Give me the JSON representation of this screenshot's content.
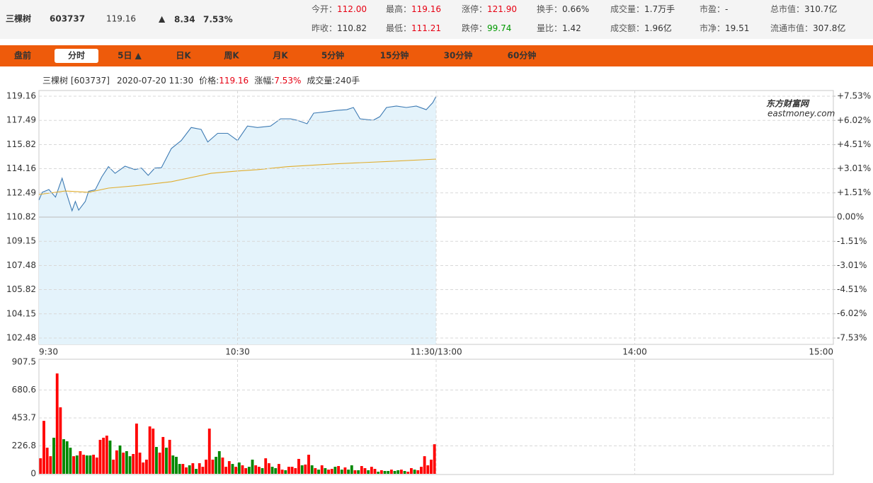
{
  "header": {
    "name": "三棵树",
    "code": "603737",
    "price": "119.16",
    "arrow": "▲",
    "change": "8.34",
    "change_pct": "7.53%",
    "color": "#e60012"
  },
  "stats": [
    [
      {
        "label": "今开：",
        "value": "112.00",
        "color": "#e60012"
      },
      {
        "label": "最高：",
        "value": "119.16",
        "color": "#e60012"
      },
      {
        "label": "涨停：",
        "value": "121.90",
        "color": "#e60012"
      },
      {
        "label": "换手：",
        "value": "0.66%",
        "color": "#333333"
      },
      {
        "label": "成交量：",
        "value": "1.7万手",
        "color": "#333333"
      },
      {
        "label": "市盈：",
        "value": "-",
        "color": "#333333"
      },
      {
        "label": "总市值：",
        "value": "310.7亿",
        "color": "#333333"
      }
    ],
    [
      {
        "label": "昨收：",
        "value": "110.82",
        "color": "#333333"
      },
      {
        "label": "最低：",
        "value": "111.21",
        "color": "#e60012"
      },
      {
        "label": "跌停：",
        "value": "99.74",
        "color": "#009900"
      },
      {
        "label": "量比：",
        "value": "1.42",
        "color": "#333333"
      },
      {
        "label": "成交额：",
        "value": "1.96亿",
        "color": "#333333"
      },
      {
        "label": "市净：",
        "value": "19.51",
        "color": "#333333"
      },
      {
        "label": "流通市值：",
        "value": "307.8亿",
        "color": "#333333"
      }
    ]
  ],
  "tabs": [
    {
      "label": "盘前"
    },
    {
      "label": "分时",
      "active": true
    },
    {
      "label": "5日 ▲"
    },
    {
      "label": "日K"
    },
    {
      "label": "周K"
    },
    {
      "label": "月K"
    },
    {
      "label": "5分钟"
    },
    {
      "label": "15分钟"
    },
    {
      "label": "30分钟"
    },
    {
      "label": "60分钟"
    }
  ],
  "info": {
    "name_code": "三棵树 [603737]",
    "datetime": "2020-07-20 11:30",
    "price_label": "价格:",
    "price": "119.16",
    "pct_label": "涨幅:",
    "pct": "7.53%",
    "volume": "成交量:240手"
  },
  "watermark": {
    "text": "东方财富网",
    "sub": "eastmoney.com"
  },
  "chart_data": [
    {
      "type": "line",
      "up_color": "#e60012",
      "down_color": "#009900",
      "grid": true,
      "xlim": [
        0,
        240
      ],
      "xticks": [
        {
          "value": 0,
          "label": "9:30"
        },
        {
          "value": 60,
          "label": "10:30"
        },
        {
          "value": 120,
          "label": "11:30/13:00"
        },
        {
          "value": 180,
          "label": "14:00"
        },
        {
          "value": 240,
          "label": "15:00"
        }
      ],
      "ylim": [
        102.48,
        119.16
      ],
      "yticks": [
        119.16,
        117.49,
        115.82,
        114.16,
        112.49,
        110.82,
        109.15,
        107.48,
        105.82,
        104.15,
        102.48
      ],
      "y2lim": [
        -7.53,
        7.53
      ],
      "y2ticks": [
        {
          "value": 7.53,
          "label": "+7.53%"
        },
        {
          "value": 6.02,
          "label": "+6.02%"
        },
        {
          "value": 4.51,
          "label": "+4.51%"
        },
        {
          "value": 3.01,
          "label": "+3.01%"
        },
        {
          "value": 1.51,
          "label": "+1.51%"
        },
        {
          "value": 0,
          "label": "0.00%"
        },
        {
          "value": -1.51,
          "label": "-1.51%"
        },
        {
          "value": -3.01,
          "label": "-3.01%"
        },
        {
          "value": -4.51,
          "label": "-4.51%"
        },
        {
          "value": -6.02,
          "label": "-6.02%"
        },
        {
          "value": -7.53,
          "label": "-7.53%"
        }
      ],
      "series": [
        {
          "color": "#3d7ab3",
          "area_color": "#e4f3fb",
          "x": [
            0,
            1,
            3,
            5,
            7,
            8,
            10,
            11,
            12,
            14,
            15,
            17,
            19,
            21,
            23,
            26,
            29,
            31,
            33,
            35,
            37,
            40,
            43,
            46,
            49,
            51,
            54,
            57,
            60,
            63,
            66,
            70,
            73,
            76,
            78,
            81,
            83,
            87,
            90,
            93,
            95,
            97,
            101,
            103,
            105,
            108,
            111,
            114,
            117,
            119,
            120
          ],
          "values": [
            112,
            112.53,
            112.72,
            112.2,
            113.5,
            112.7,
            111.26,
            111.9,
            111.3,
            111.9,
            112.6,
            112.7,
            113.6,
            114.3,
            113.84,
            114.33,
            114.1,
            114.2,
            113.7,
            114.2,
            114.23,
            115.55,
            116.1,
            117,
            116.87,
            116,
            116.6,
            116.6,
            116.1,
            117.1,
            117,
            117.1,
            117.6,
            117.6,
            117.5,
            117.26,
            117.99,
            118.09,
            118.18,
            118.23,
            118.38,
            117.6,
            117.5,
            117.75,
            118.38,
            118.48,
            118.38,
            118.48,
            118.23,
            118.72,
            119.16
          ]
        },
        {
          "color": "#e0ad2e",
          "x": [
            0,
            8,
            15,
            21,
            30,
            40,
            52,
            60,
            66,
            75,
            90,
            105,
            120
          ],
          "values": [
            112.38,
            112.62,
            112.53,
            112.82,
            113,
            113.26,
            113.84,
            114,
            114.09,
            114.3,
            114.5,
            114.65,
            114.82
          ]
        }
      ]
    },
    {
      "type": "bar",
      "grid": true,
      "xlim": [
        0,
        240
      ],
      "ylim": [
        0,
        907.5
      ],
      "yticks": [
        907.5,
        680.6,
        453.7,
        226.8,
        0
      ],
      "values": [
        126,
        430,
        212,
        143,
        293,
        815,
        540,
        281,
        264,
        212,
        143,
        149,
        184,
        155,
        149,
        149,
        155,
        132,
        276,
        293,
        310,
        270,
        115,
        190,
        230,
        172,
        184,
        143,
        161,
        408,
        172,
        92,
        115,
        385,
        367,
        218,
        172,
        299,
        212,
        276,
        149,
        138,
        80,
        80,
        52,
        69,
        86,
        40,
        86,
        57,
        115,
        367,
        115,
        138,
        184,
        132,
        57,
        103,
        80,
        57,
        92,
        69,
        46,
        57,
        115,
        69,
        57,
        46,
        126,
        86,
        57,
        46,
        80,
        34,
        29,
        57,
        57,
        46,
        121,
        69,
        75,
        155,
        69,
        46,
        34,
        69,
        46,
        34,
        40,
        57,
        63,
        34,
        52,
        34,
        69,
        29,
        29,
        63,
        46,
        29,
        57,
        40,
        17,
        29,
        23,
        23,
        34,
        23,
        29,
        34,
        23,
        17,
        46,
        34,
        29,
        57,
        143,
        69,
        115,
        240
      ],
      "colors": [
        "#f00",
        "#f00",
        "#f00",
        "#f00",
        "#080",
        "#f00",
        "#f00",
        "#080",
        "#080",
        "#080",
        "#f00",
        "#080",
        "#f00",
        "#f00",
        "#080",
        "#080",
        "#f00",
        "#f00",
        "#f00",
        "#f00",
        "#f00",
        "#080",
        "#f00",
        "#f00",
        "#080",
        "#f00",
        "#080",
        "#080",
        "#f00",
        "#f00",
        "#f00",
        "#f00",
        "#f00",
        "#f00",
        "#f00",
        "#080",
        "#f00",
        "#f00",
        "#080",
        "#f00",
        "#080",
        "#080",
        "#080",
        "#f00",
        "#f00",
        "#080",
        "#f00",
        "#080",
        "#f00",
        "#f00",
        "#f00",
        "#f00",
        "#f00",
        "#080",
        "#080",
        "#f00",
        "#f00",
        "#f00",
        "#080",
        "#f00",
        "#080",
        "#f00",
        "#f00",
        "#080",
        "#080",
        "#f00",
        "#f00",
        "#080",
        "#f00",
        "#f00",
        "#080",
        "#080",
        "#f00",
        "#f00",
        "#080",
        "#f00",
        "#f00",
        "#f00",
        "#f00",
        "#080",
        "#f00",
        "#f00",
        "#080",
        "#f00",
        "#080",
        "#f00",
        "#080",
        "#f00",
        "#f00",
        "#080",
        "#f00",
        "#080",
        "#f00",
        "#080",
        "#080",
        "#f00",
        "#080",
        "#f00",
        "#f00",
        "#080",
        "#f00",
        "#f00",
        "#080",
        "#f00",
        "#080",
        "#080",
        "#f00",
        "#080",
        "#080",
        "#f00",
        "#080",
        "#f00",
        "#f00",
        "#080",
        "#f00",
        "#f00",
        "#f00",
        "#f00",
        "#f00",
        "#f00"
      ]
    }
  ]
}
